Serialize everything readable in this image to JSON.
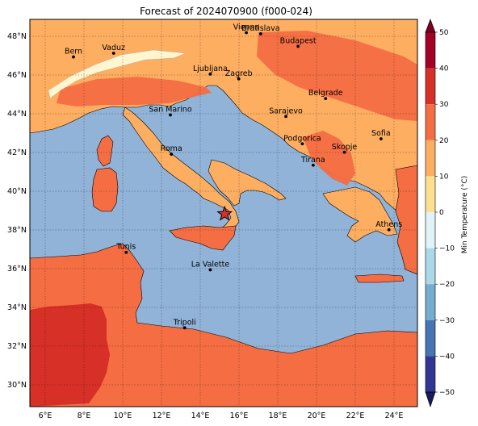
{
  "title": "Forecast of 2024070900 (f000-024)",
  "map": {
    "lon_range": [
      5.2,
      25.2
    ],
    "lat_range": [
      28.8,
      48.9
    ],
    "x_ticks": [
      "6°E",
      "8°E",
      "10°E",
      "12°E",
      "14°E",
      "16°E",
      "18°E",
      "20°E",
      "22°E",
      "24°E"
    ],
    "x_tick_lons": [
      6,
      8,
      10,
      12,
      14,
      16,
      18,
      20,
      22,
      24
    ],
    "y_ticks": [
      "48°N",
      "46°N",
      "44°N",
      "42°N",
      "40°N",
      "38°N",
      "36°N",
      "34°N",
      "32°N",
      "30°N"
    ],
    "y_tick_lats": [
      48,
      46,
      44,
      42,
      40,
      38,
      36,
      34,
      32,
      30
    ],
    "colors": {
      "sea": "#91b3d8",
      "land_20_30": "#f56d43",
      "land_10_20": "#fdae61",
      "land_0_10": "#fef6d0",
      "land_30_40": "#d73027"
    }
  },
  "cities": [
    {
      "name": "Bern",
      "lon": 7.45,
      "lat": 46.95
    },
    {
      "name": "Vaduz",
      "lon": 9.52,
      "lat": 47.14
    },
    {
      "name": "Vienna",
      "lon": 16.37,
      "lat": 48.21
    },
    {
      "name": "Bratislava",
      "lon": 17.11,
      "lat": 48.15
    },
    {
      "name": "Budapest",
      "lon": 19.04,
      "lat": 47.5
    },
    {
      "name": "Ljubljana",
      "lon": 14.51,
      "lat": 46.06
    },
    {
      "name": "Zagreb",
      "lon": 15.98,
      "lat": 45.81
    },
    {
      "name": "Belgrade",
      "lon": 20.46,
      "lat": 44.79
    },
    {
      "name": "San Marino",
      "lon": 12.45,
      "lat": 43.94
    },
    {
      "name": "Sarajevo",
      "lon": 18.41,
      "lat": 43.86
    },
    {
      "name": "Podgorica",
      "lon": 19.26,
      "lat": 42.44
    },
    {
      "name": "Skopje",
      "lon": 21.43,
      "lat": 42.0
    },
    {
      "name": "Sofia",
      "lon": 23.32,
      "lat": 42.7
    },
    {
      "name": "Roma",
      "lon": 12.5,
      "lat": 41.9
    },
    {
      "name": "Tirana",
      "lon": 19.82,
      "lat": 41.33
    },
    {
      "name": "Athens",
      "lon": 23.73,
      "lat": 37.98
    },
    {
      "name": "Tunis",
      "lon": 10.17,
      "lat": 36.81
    },
    {
      "name": "La Valette",
      "lon": 14.51,
      "lat": 35.9
    },
    {
      "name": "Tripoli",
      "lon": 13.19,
      "lat": 32.89
    }
  ],
  "marker": {
    "lon": 15.25,
    "lat": 38.8,
    "symbol": "star",
    "color": "#d73027"
  },
  "colorbar": {
    "label": "Min Temperature (°C)",
    "ticks": [
      "50",
      "40",
      "30",
      "20",
      "10",
      "0",
      "−10",
      "−20",
      "−30",
      "−40",
      "−50"
    ],
    "bands": [
      {
        "from": 40,
        "to": 50,
        "color": "#a50026"
      },
      {
        "from": 30,
        "to": 40,
        "color": "#d73027"
      },
      {
        "from": 20,
        "to": 30,
        "color": "#f46d43"
      },
      {
        "from": 10,
        "to": 20,
        "color": "#fdae61"
      },
      {
        "from": 0,
        "to": 10,
        "color": "#fee090"
      },
      {
        "from": -10,
        "to": 0,
        "color": "#e0f3f8"
      },
      {
        "from": -20,
        "to": -10,
        "color": "#abd9e9"
      },
      {
        "from": -30,
        "to": -20,
        "color": "#74add1"
      },
      {
        "from": -40,
        "to": -30,
        "color": "#4575b4"
      },
      {
        "from": -50,
        "to": -40,
        "color": "#313695"
      }
    ],
    "extend_min_color": "#1a1a5e",
    "extend_max_color": "#800020"
  }
}
